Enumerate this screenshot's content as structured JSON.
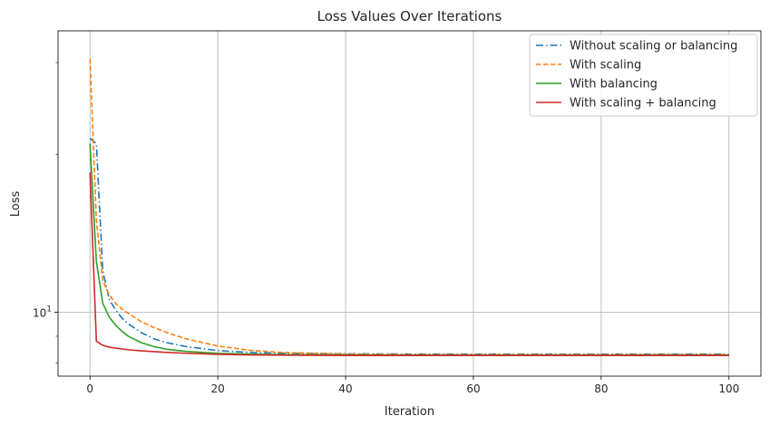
{
  "chart_data": {
    "type": "line",
    "title": "Loss Values Over Iterations",
    "xlabel": "Iteration",
    "ylabel": "Loss",
    "xlim": [
      -5,
      105
    ],
    "ylim": [
      7.55,
      34.5
    ],
    "yscale": "log",
    "grid": true,
    "legend_position": "top-right",
    "x_ticks": [
      0,
      20,
      40,
      60,
      80,
      100
    ],
    "x_tick_labels": [
      "0",
      "20",
      "40",
      "60",
      "80",
      "100"
    ],
    "y_major_ticks": [
      10
    ],
    "y_major_tick_base": "10",
    "y_major_tick_exp": "1",
    "y_minor_ticks": [
      8,
      9,
      20,
      30
    ],
    "series": [
      {
        "name": "Without scaling or balancing",
        "color": "#1f77b4",
        "dash": "dashdot",
        "x": [
          0,
          1,
          2,
          3,
          4,
          5,
          6,
          8,
          10,
          12,
          15,
          20,
          25,
          30,
          40,
          50,
          60,
          80,
          100
        ],
        "y": [
          21.5,
          21.0,
          12.0,
          10.6,
          10.1,
          9.75,
          9.5,
          9.15,
          8.9,
          8.75,
          8.6,
          8.45,
          8.38,
          8.35,
          8.33,
          8.32,
          8.32,
          8.32,
          8.32
        ]
      },
      {
        "name": "With scaling",
        "color": "#ff7f0e",
        "dash": "dashed",
        "x": [
          0,
          1,
          2,
          3,
          4,
          5,
          6,
          8,
          10,
          12,
          15,
          20,
          25,
          30,
          40,
          50,
          60,
          80,
          100
        ],
        "y": [
          30.5,
          15.0,
          11.5,
          10.8,
          10.4,
          10.15,
          9.95,
          9.6,
          9.35,
          9.15,
          8.9,
          8.62,
          8.46,
          8.38,
          8.32,
          8.3,
          8.3,
          8.3,
          8.3
        ]
      },
      {
        "name": "With balancing",
        "color": "#2ca02c",
        "dash": "solid",
        "x": [
          0,
          1,
          2,
          3,
          4,
          5,
          6,
          8,
          10,
          12,
          15,
          20,
          25,
          30,
          40,
          50,
          60,
          80,
          100
        ],
        "y": [
          21.0,
          12.5,
          10.4,
          9.8,
          9.45,
          9.2,
          9.0,
          8.75,
          8.6,
          8.5,
          8.42,
          8.35,
          8.32,
          8.3,
          8.29,
          8.28,
          8.28,
          8.28,
          8.28
        ]
      },
      {
        "name": "With scaling + balancing",
        "color": "#d62728",
        "dash": "solid",
        "x": [
          0,
          1,
          2,
          3,
          4,
          5,
          6,
          8,
          10,
          12,
          15,
          20,
          25,
          30,
          40,
          50,
          60,
          80,
          100
        ],
        "y": [
          18.5,
          8.8,
          8.65,
          8.58,
          8.54,
          8.51,
          8.48,
          8.44,
          8.41,
          8.38,
          8.35,
          8.31,
          8.29,
          8.28,
          8.27,
          8.27,
          8.27,
          8.27,
          8.27
        ]
      }
    ]
  }
}
